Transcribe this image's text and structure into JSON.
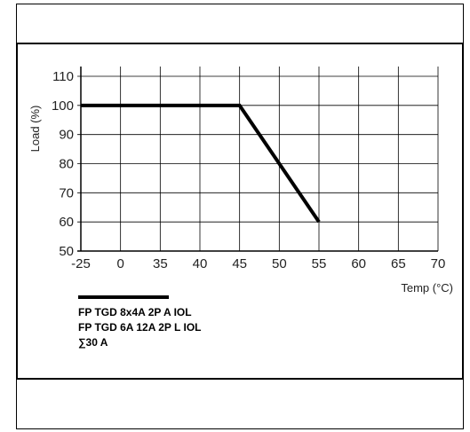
{
  "chart_data": {
    "type": "line",
    "title": "",
    "xlabel": "Temp (°C)",
    "ylabel": "Load (%)",
    "x_ticks": [
      "-25",
      "0",
      "35",
      "40",
      "45",
      "50",
      "55",
      "60",
      "65",
      "70"
    ],
    "y_ticks": [
      110,
      100,
      90,
      80,
      70,
      60,
      50
    ],
    "ylim": [
      50,
      110
    ],
    "grid": true,
    "series": [
      {
        "x": [
          "-25",
          "45",
          "55"
        ],
        "y": [
          100,
          100,
          60
        ],
        "color": "#000000"
      }
    ],
    "legend": {
      "placement": "bottom-left",
      "lines": [
        "FP TGD 8x4A 2P A IOL",
        "FP TGD 6A 12A 2P L IOL",
        "∑30 A"
      ]
    }
  }
}
